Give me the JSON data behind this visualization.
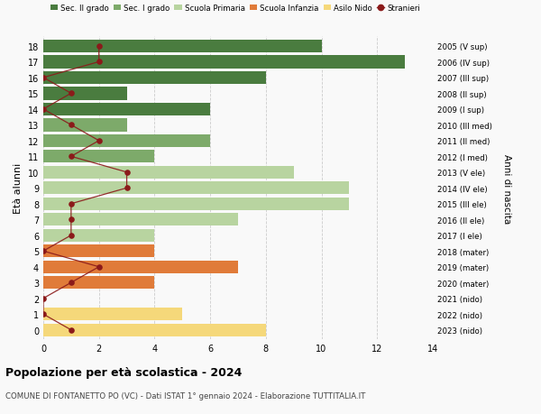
{
  "ages": [
    18,
    17,
    16,
    15,
    14,
    13,
    12,
    11,
    10,
    9,
    8,
    7,
    6,
    5,
    4,
    3,
    2,
    1,
    0
  ],
  "right_labels": [
    "2005 (V sup)",
    "2006 (IV sup)",
    "2007 (III sup)",
    "2008 (II sup)",
    "2009 (I sup)",
    "2010 (III med)",
    "2011 (II med)",
    "2012 (I med)",
    "2013 (V ele)",
    "2014 (IV ele)",
    "2015 (III ele)",
    "2016 (II ele)",
    "2017 (I ele)",
    "2018 (mater)",
    "2019 (mater)",
    "2020 (mater)",
    "2021 (nido)",
    "2022 (nido)",
    "2023 (nido)"
  ],
  "bar_values": [
    10,
    13,
    8,
    3,
    6,
    3,
    6,
    4,
    9,
    11,
    11,
    7,
    4,
    4,
    7,
    4,
    0,
    5,
    8
  ],
  "bar_colors": [
    "#4a7c3f",
    "#4a7c3f",
    "#4a7c3f",
    "#4a7c3f",
    "#4a7c3f",
    "#7daa6a",
    "#7daa6a",
    "#7daa6a",
    "#b8d4a0",
    "#b8d4a0",
    "#b8d4a0",
    "#b8d4a0",
    "#b8d4a0",
    "#e07b39",
    "#e07b39",
    "#e07b39",
    "#f5d87a",
    "#f5d87a",
    "#f5d87a"
  ],
  "stranieri_values": [
    2,
    2,
    0,
    1,
    0,
    1,
    2,
    1,
    3,
    3,
    1,
    1,
    1,
    0,
    2,
    1,
    0,
    0,
    1
  ],
  "stranieri_color": "#8b1a1a",
  "legend_labels": [
    "Sec. II grado",
    "Sec. I grado",
    "Scuola Primaria",
    "Scuola Infanzia",
    "Asilo Nido",
    "Stranieri"
  ],
  "legend_colors": [
    "#4a7c3f",
    "#7daa6a",
    "#b8d4a0",
    "#e07b39",
    "#f5d87a",
    "#8b1a1a"
  ],
  "ylabel": "Età alunni",
  "right_ylabel": "Anni di nascita",
  "title": "Popolazione per età scolastica - 2024",
  "subtitle": "COMUNE DI FONTANETTO PO (VC) - Dati ISTAT 1° gennaio 2024 - Elaborazione TUTTITALIA.IT",
  "xlim": [
    0,
    14
  ],
  "background_color": "#f9f9f9",
  "grid_color": "#cccccc"
}
